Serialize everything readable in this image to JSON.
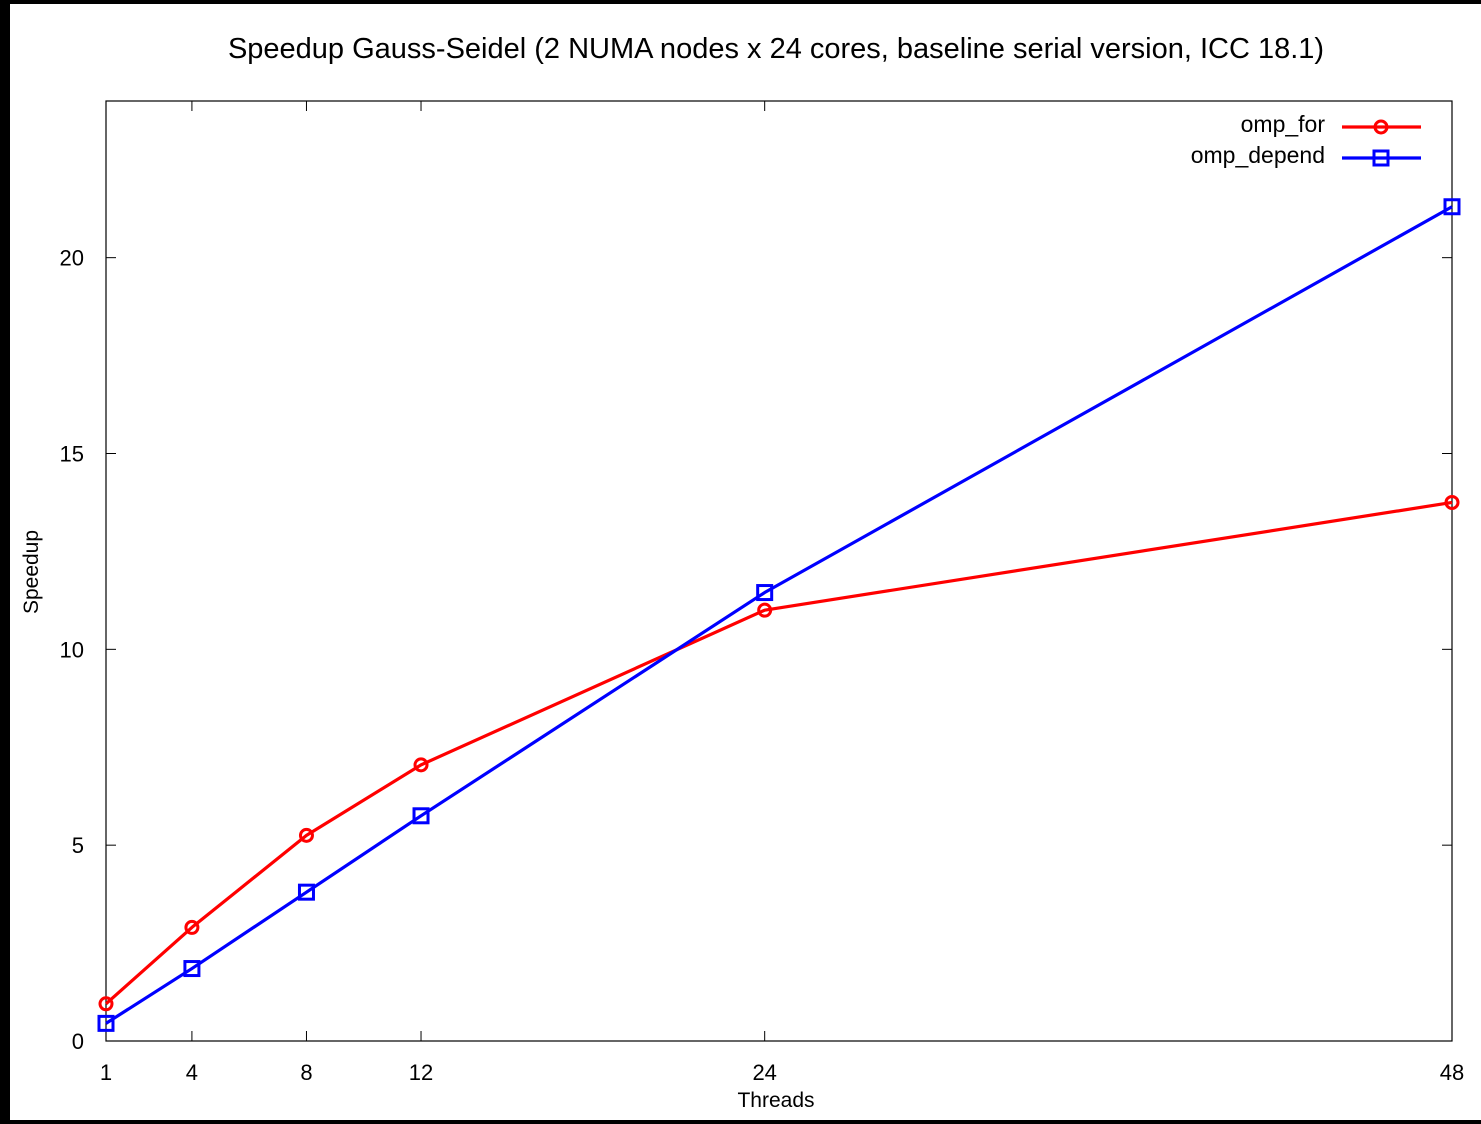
{
  "chart_data": {
    "type": "line",
    "title": "Speedup Gauss-Seidel (2 NUMA nodes x 24 cores, baseline serial version, ICC 18.1)",
    "xlabel": "Threads",
    "ylabel": "Speedup",
    "x": [
      1,
      4,
      8,
      12,
      24,
      48
    ],
    "x_tick_labels": [
      "1",
      "4",
      "8",
      "12",
      "24",
      "48"
    ],
    "xlim": [
      1,
      48
    ],
    "ylim": [
      0,
      24
    ],
    "y_ticks": [
      0,
      5,
      10,
      15,
      20
    ],
    "y_tick_labels": [
      "0",
      "5",
      "10",
      "15",
      "20"
    ],
    "grid": false,
    "legend_position": "top-right",
    "series": [
      {
        "name": "omp_for",
        "color": "#ff0000",
        "marker": "circle",
        "values": [
          0.95,
          2.9,
          5.25,
          7.05,
          11.0,
          13.75
        ]
      },
      {
        "name": "omp_depend",
        "color": "#0000ff",
        "marker": "square",
        "values": [
          0.45,
          1.85,
          3.8,
          5.75,
          11.45,
          21.3
        ]
      }
    ]
  }
}
